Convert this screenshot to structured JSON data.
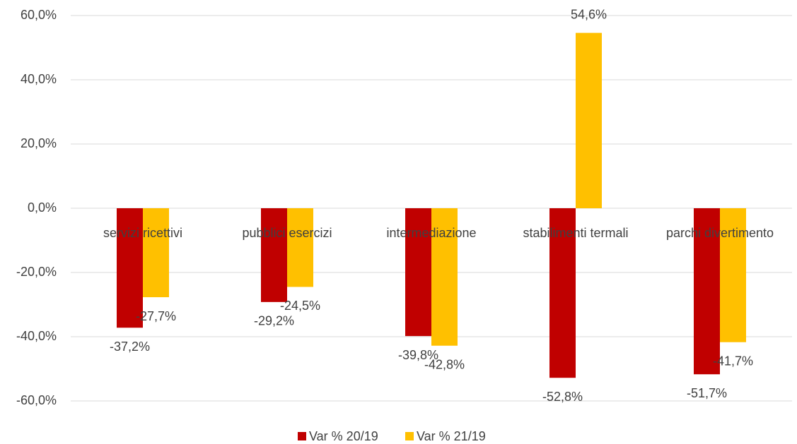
{
  "chart_data": {
    "type": "bar",
    "categories": [
      "servizi ricettivi",
      "pubblici esercizi",
      "intermediazione",
      "stabilimenti termali",
      "parchi divertimento"
    ],
    "series": [
      {
        "name": "Var % 20/19",
        "color": "#c00000",
        "values": [
          -37.2,
          -29.2,
          -39.8,
          -52.8,
          -51.7
        ],
        "value_labels": [
          "-37,2%",
          "-29,2%",
          "-39,8%",
          "-52,8%",
          "-51,7%"
        ]
      },
      {
        "name": "Var % 21/19",
        "color": "#ffc000",
        "values": [
          -27.7,
          -24.5,
          -42.8,
          54.6,
          -41.7
        ],
        "value_labels": [
          "-27,7%",
          "-24,5%",
          "-42,8%",
          "54,6%",
          "-41,7%"
        ]
      }
    ],
    "ylim": [
      -60,
      60
    ],
    "yticks": [
      {
        "value": -60,
        "label": "-60,0%"
      },
      {
        "value": -40,
        "label": "-40,0%"
      },
      {
        "value": -20,
        "label": "-20,0%"
      },
      {
        "value": 0,
        "label": "0,0%"
      },
      {
        "value": 20,
        "label": "20,0%"
      },
      {
        "value": 40,
        "label": "40,0%"
      },
      {
        "value": 60,
        "label": "60,0%"
      }
    ],
    "grid": true,
    "legend": "bottom"
  }
}
